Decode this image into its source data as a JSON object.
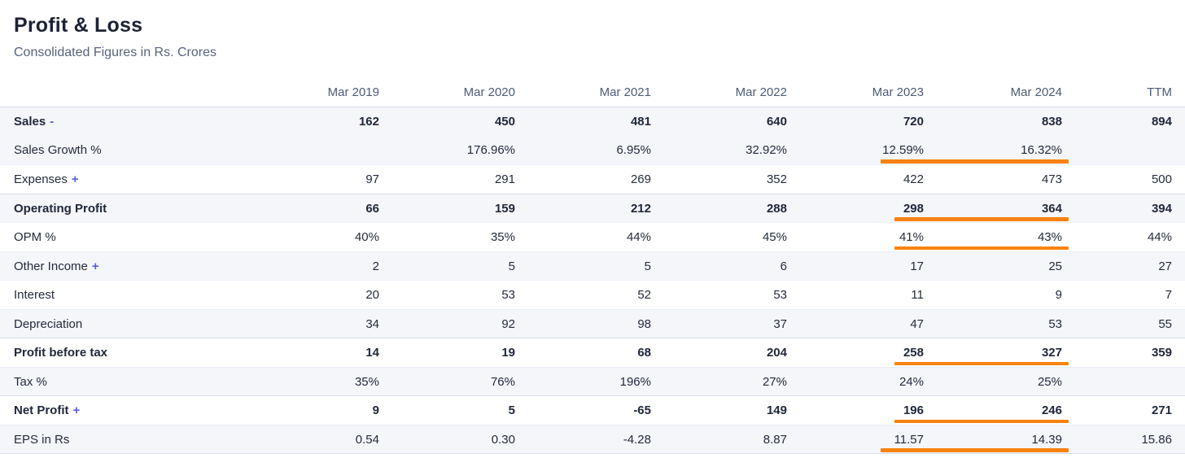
{
  "header": {
    "title": "Profit & Loss",
    "subtitle": "Consolidated Figures in Rs. Crores"
  },
  "table": {
    "columns": [
      "",
      "Mar 2019",
      "Mar 2020",
      "Mar 2021",
      "Mar 2022",
      "Mar 2023",
      "Mar 2024",
      "TTM"
    ],
    "rows": [
      {
        "label": "Sales",
        "suffix": "-",
        "bold": true,
        "values": [
          "162",
          "450",
          "481",
          "640",
          "720",
          "838",
          "894"
        ]
      },
      {
        "label": "Sales Growth %",
        "bold": false,
        "merge_with_above": true,
        "underline": true,
        "underline_inset": false,
        "values": [
          "",
          "176.96%",
          "6.95%",
          "32.92%",
          "12.59%",
          "16.32%",
          ""
        ]
      },
      {
        "label": "Expenses",
        "suffix": "+",
        "bold": false,
        "values": [
          "97",
          "291",
          "269",
          "352",
          "422",
          "473",
          "500"
        ]
      },
      {
        "label": "Operating Profit",
        "bold": true,
        "strong_border": true,
        "underline": true,
        "underline_inset": true,
        "values": [
          "66",
          "159",
          "212",
          "288",
          "298",
          "364",
          "394"
        ]
      },
      {
        "label": "OPM %",
        "bold": false,
        "underline": true,
        "underline_inset": true,
        "values": [
          "40%",
          "35%",
          "44%",
          "45%",
          "41%",
          "43%",
          "44%"
        ]
      },
      {
        "label": "Other Income",
        "suffix": "+",
        "bold": false,
        "values": [
          "2",
          "5",
          "5",
          "6",
          "17",
          "25",
          "27"
        ]
      },
      {
        "label": "Interest",
        "bold": false,
        "values": [
          "20",
          "53",
          "52",
          "53",
          "11",
          "9",
          "7"
        ]
      },
      {
        "label": "Depreciation",
        "bold": false,
        "values": [
          "34",
          "92",
          "98",
          "37",
          "47",
          "53",
          "55"
        ]
      },
      {
        "label": "Profit before tax",
        "bold": true,
        "strong_border": true,
        "underline": true,
        "underline_inset": true,
        "values": [
          "14",
          "19",
          "68",
          "204",
          "258",
          "327",
          "359"
        ]
      },
      {
        "label": "Tax %",
        "bold": false,
        "values": [
          "35%",
          "76%",
          "196%",
          "27%",
          "24%",
          "25%",
          ""
        ]
      },
      {
        "label": "Net Profit",
        "suffix": "+",
        "bold": true,
        "strong_border": true,
        "underline": true,
        "underline_inset": true,
        "values": [
          "9",
          "5",
          "-65",
          "149",
          "196",
          "246",
          "271"
        ]
      },
      {
        "label": "EPS in Rs",
        "bold": false,
        "underline": true,
        "underline_inset": false,
        "values": [
          "0.54",
          "0.30",
          "-4.28",
          "8.87",
          "11.57",
          "14.39",
          "15.86"
        ]
      }
    ]
  },
  "colors": {
    "highlight_orange": "#f8820e",
    "expand_toggle_purple": "#5a5be0",
    "stripe_background": "#f5f6fa"
  }
}
